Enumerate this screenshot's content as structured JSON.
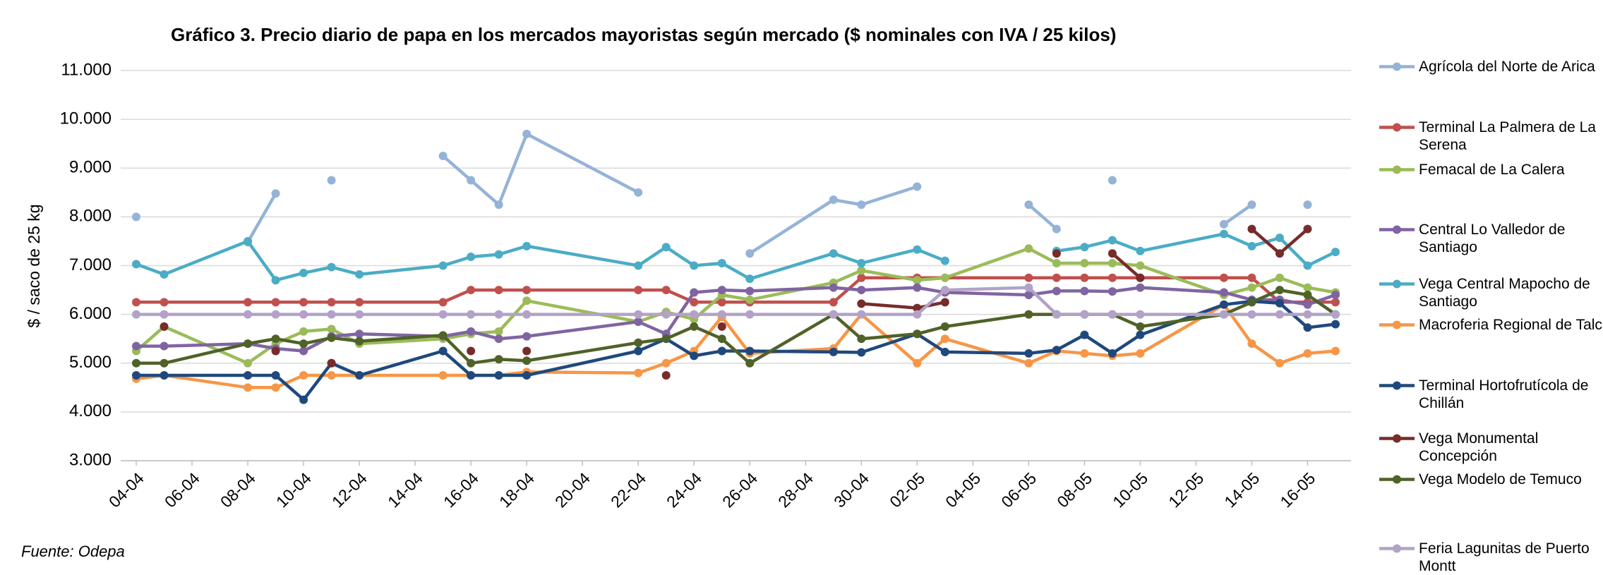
{
  "chart_data": {
    "type": "line",
    "title": "Gráfico 3. Precio diario de papa en los mercados mayoristas según mercado  ($ nominales con IVA / 25 kilos)",
    "y_label": "$ / saco de 25 kg",
    "source": "Fuente: Odepa",
    "grid": true,
    "legend": "right",
    "x": [
      "04-04",
      "05-04",
      "08-04",
      "09-04",
      "10-04",
      "11-04",
      "12-04",
      "15-04",
      "16-04",
      "17-04",
      "18-04",
      "22-04",
      "23-04",
      "24-04",
      "25-04",
      "26-04",
      "29-04",
      "30-04",
      "02-05",
      "03-05",
      "06-05",
      "07-05",
      "08-05",
      "09-05",
      "10-05",
      "13-05",
      "14-05",
      "15-05",
      "16-05",
      "17-05"
    ],
    "xlim": [
      "04-04",
      "17-05"
    ],
    "xticks": [
      "04-04",
      "06-04",
      "08-04",
      "10-04",
      "12-04",
      "14-04",
      "16-04",
      "18-04",
      "20-04",
      "22-04",
      "24-04",
      "26-04",
      "28-04",
      "30-04",
      "02-05",
      "04-05",
      "06-05",
      "08-05",
      "10-05",
      "12-05",
      "14-05",
      "16-05"
    ],
    "ylim": [
      3000,
      11000
    ],
    "yticks": [
      {
        "value": 3000,
        "label": "3.000"
      },
      {
        "value": 4000,
        "label": "4.000"
      },
      {
        "value": 5000,
        "label": "5.000"
      },
      {
        "value": 6000,
        "label": "6.000"
      },
      {
        "value": 7000,
        "label": "7.000"
      },
      {
        "value": 8000,
        "label": "8.000"
      },
      {
        "value": 9000,
        "label": "9.000"
      },
      {
        "value": 10000,
        "label": "10.000"
      },
      {
        "value": 11000,
        "label": "11.000"
      }
    ],
    "series": [
      {
        "name": "Agrícola del Norte de Arica",
        "color": "#95b3d7",
        "values": [
          8000,
          null,
          7480,
          8480,
          null,
          8750,
          null,
          9250,
          8750,
          8250,
          9700,
          8500,
          null,
          null,
          null,
          7250,
          8350,
          8250,
          8620,
          null,
          8250,
          7750,
          null,
          8750,
          null,
          7850,
          8250,
          null,
          8250,
          null
        ]
      },
      {
        "name": "Terminal La Palmera de La Serena",
        "color": "#c0504d",
        "values": [
          6250,
          6250,
          6250,
          6250,
          6250,
          6250,
          6250,
          6250,
          6500,
          6500,
          6500,
          6500,
          6500,
          6250,
          6250,
          6250,
          6250,
          6750,
          6750,
          6750,
          6750,
          6750,
          6750,
          6750,
          6750,
          6750,
          6750,
          6250,
          6250,
          6250
        ]
      },
      {
        "name": "Femacal de La Calera",
        "color": "#9bbb59",
        "values": [
          5250,
          5750,
          5000,
          5400,
          5650,
          5700,
          5400,
          5500,
          5600,
          5650,
          6280,
          5850,
          6050,
          5900,
          6400,
          6300,
          6650,
          6900,
          6700,
          6750,
          7350,
          7050,
          7050,
          7050,
          7000,
          6400,
          6550,
          6750,
          6550,
          6450
        ]
      },
      {
        "name": "Central Lo Valledor de Santiago",
        "color": "#8064a2",
        "values": [
          5350,
          5350,
          5400,
          5300,
          5250,
          5550,
          5600,
          5550,
          5650,
          5500,
          5550,
          5850,
          5600,
          6450,
          6500,
          6480,
          6550,
          6500,
          6550,
          6450,
          6400,
          6480,
          6480,
          6470,
          6550,
          6450,
          6300,
          6300,
          6200,
          6400
        ]
      },
      {
        "name": "Vega Central Mapocho de Santiago",
        "color": "#4bacc6",
        "values": [
          7030,
          6820,
          7500,
          6700,
          6850,
          6970,
          6820,
          7000,
          7180,
          7230,
          7400,
          7000,
          7380,
          7000,
          7050,
          6730,
          7250,
          7050,
          7330,
          7100,
          null,
          7300,
          7380,
          7520,
          7300,
          7650,
          7400,
          7570,
          7000,
          7280
        ]
      },
      {
        "name": "Macroferia Regional de Talca",
        "color": "#f79646",
        "values": [
          4680,
          4750,
          4500,
          4500,
          4750,
          4750,
          4750,
          4750,
          4750,
          4750,
          4820,
          4800,
          5000,
          5250,
          5950,
          5200,
          5300,
          6000,
          5000,
          5500,
          5000,
          5250,
          5200,
          5150,
          5200,
          6200,
          5400,
          5000,
          5200,
          5250
        ]
      },
      {
        "name": "Terminal Hortofrutícola de Chillán",
        "color": "#1f497d",
        "values": [
          4750,
          4750,
          4750,
          4750,
          4250,
          5000,
          4750,
          5250,
          4750,
          4750,
          4750,
          5250,
          5500,
          5150,
          5250,
          5250,
          5230,
          5220,
          5600,
          5230,
          5200,
          5270,
          5580,
          5200,
          5580,
          6200,
          6270,
          6230,
          5730,
          5800
        ]
      },
      {
        "name": "Vega Monumental Concepción",
        "color": "#772c2a",
        "values": [
          null,
          5750,
          null,
          5250,
          null,
          5000,
          null,
          null,
          5250,
          null,
          5250,
          null,
          4750,
          null,
          5750,
          null,
          null,
          6220,
          6130,
          6250,
          null,
          7250,
          null,
          7250,
          6750,
          null,
          7750,
          7250,
          7750,
          null
        ]
      },
      {
        "name": "Vega Modelo de Temuco",
        "color": "#4f6228",
        "values": [
          5000,
          5000,
          5400,
          5500,
          5400,
          5520,
          5450,
          5570,
          5000,
          5080,
          5050,
          5420,
          5500,
          5750,
          5500,
          5000,
          6000,
          5500,
          5600,
          5750,
          6000,
          6000,
          6000,
          6000,
          5750,
          6000,
          6250,
          6500,
          6400,
          6000
        ]
      },
      {
        "name": "Feria Lagunitas de Puerto Montt",
        "color": "#b3a2c7",
        "values": [
          6000,
          6000,
          6000,
          6000,
          6000,
          6000,
          6000,
          6000,
          6000,
          6000,
          6000,
          6000,
          6000,
          6000,
          6000,
          6000,
          6000,
          6000,
          6000,
          6500,
          6550,
          6000,
          6000,
          6000,
          6000,
          6000,
          6000,
          6000,
          6000,
          6000
        ]
      }
    ]
  }
}
